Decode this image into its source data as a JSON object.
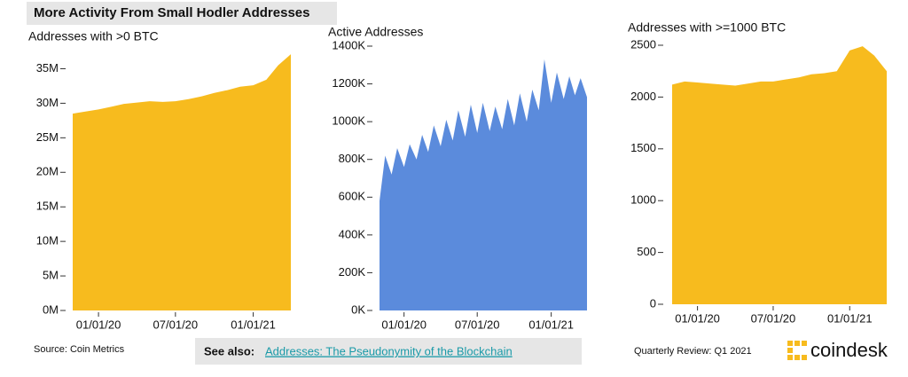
{
  "header": {
    "title": "More Activity From Small Hodler Addresses"
  },
  "footer": {
    "source": "Source: Coin Metrics",
    "see_also_label": "See also:",
    "see_also_link": "Addresses: The Pseudonymity of the Blockchain",
    "review": "Quarterly Review: Q1 2021",
    "brand": "coindesk"
  },
  "chart_data": [
    {
      "type": "area",
      "title": "Addresses with >0 BTC",
      "color": "#f7bb1e",
      "x": [
        "11/01/19",
        "12/01/19",
        "01/01/20",
        "02/01/20",
        "03/01/20",
        "04/01/20",
        "05/01/20",
        "06/01/20",
        "07/01/20",
        "08/01/20",
        "09/01/20",
        "10/01/20",
        "11/01/20",
        "12/01/20",
        "01/01/21",
        "02/01/21",
        "03/01/21",
        "03/31/21"
      ],
      "values": [
        28500000,
        28800000,
        29100000,
        29500000,
        29900000,
        30100000,
        30300000,
        30200000,
        30300000,
        30600000,
        31000000,
        31500000,
        31900000,
        32400000,
        32600000,
        33400000,
        35500000,
        37100000
      ],
      "xlim": [
        "11/01/19",
        "03/31/21"
      ],
      "xticks": [
        "01/01/20",
        "07/01/20",
        "01/01/21"
      ],
      "ylim": [
        0,
        37500000
      ],
      "yticks": [
        {
          "value": 0,
          "label": "0M"
        },
        {
          "value": 5000000,
          "label": "5M"
        },
        {
          "value": 10000000,
          "label": "10M"
        },
        {
          "value": 15000000,
          "label": "15M"
        },
        {
          "value": 20000000,
          "label": "20M"
        },
        {
          "value": 25000000,
          "label": "25M"
        },
        {
          "value": 30000000,
          "label": "30M"
        },
        {
          "value": 35000000,
          "label": "35M"
        }
      ]
    },
    {
      "type": "area",
      "title": "Active Addresses",
      "color": "#5b8bdc",
      "x": [
        "11/01/19",
        "11/15/19",
        "12/01/19",
        "12/15/19",
        "01/01/20",
        "01/15/20",
        "02/01/20",
        "02/15/20",
        "03/01/20",
        "03/15/20",
        "04/01/20",
        "04/15/20",
        "05/01/20",
        "05/15/20",
        "06/01/20",
        "06/15/20",
        "07/01/20",
        "07/15/20",
        "08/01/20",
        "08/15/20",
        "09/01/20",
        "09/15/20",
        "10/01/20",
        "10/15/20",
        "11/01/20",
        "11/15/20",
        "12/01/20",
        "12/15/20",
        "01/01/21",
        "01/15/21",
        "02/01/21",
        "02/15/21",
        "03/01/21",
        "03/15/21",
        "03/31/21"
      ],
      "values": [
        580000,
        820000,
        720000,
        860000,
        760000,
        880000,
        800000,
        930000,
        840000,
        980000,
        870000,
        1010000,
        900000,
        1060000,
        920000,
        1090000,
        940000,
        1100000,
        950000,
        1080000,
        960000,
        1120000,
        980000,
        1150000,
        1000000,
        1170000,
        1060000,
        1330000,
        1100000,
        1260000,
        1120000,
        1240000,
        1140000,
        1230000,
        1130000
      ],
      "xlim": [
        "11/01/19",
        "03/31/21"
      ],
      "xticks": [
        "01/01/20",
        "07/01/20",
        "01/01/21"
      ],
      "ylim": [
        0,
        1400000
      ],
      "yticks": [
        {
          "value": 0,
          "label": "0K"
        },
        {
          "value": 200000,
          "label": "200K"
        },
        {
          "value": 400000,
          "label": "400K"
        },
        {
          "value": 600000,
          "label": "600K"
        },
        {
          "value": 800000,
          "label": "800K"
        },
        {
          "value": 1000000,
          "label": "1000K"
        },
        {
          "value": 1200000,
          "label": "1200K"
        },
        {
          "value": 1400000,
          "label": "1400K"
        }
      ]
    },
    {
      "type": "area",
      "title": "Addresses with >=1000 BTC",
      "color": "#f7bb1e",
      "x": [
        "11/01/19",
        "12/01/19",
        "01/01/20",
        "02/01/20",
        "03/01/20",
        "04/01/20",
        "05/01/20",
        "06/01/20",
        "07/01/20",
        "08/01/20",
        "09/01/20",
        "10/01/20",
        "11/01/20",
        "12/01/20",
        "01/01/21",
        "02/01/21",
        "03/01/21",
        "03/31/21"
      ],
      "values": [
        2120,
        2150,
        2140,
        2130,
        2120,
        2110,
        2130,
        2150,
        2150,
        2170,
        2190,
        2220,
        2230,
        2250,
        2450,
        2490,
        2400,
        2250
      ],
      "xlim": [
        "11/01/19",
        "03/31/21"
      ],
      "xticks": [
        "01/01/20",
        "07/01/20",
        "01/01/21"
      ],
      "ylim": [
        0,
        2500
      ],
      "yticks": [
        0,
        500,
        1000,
        1500,
        2000,
        2500
      ]
    }
  ]
}
